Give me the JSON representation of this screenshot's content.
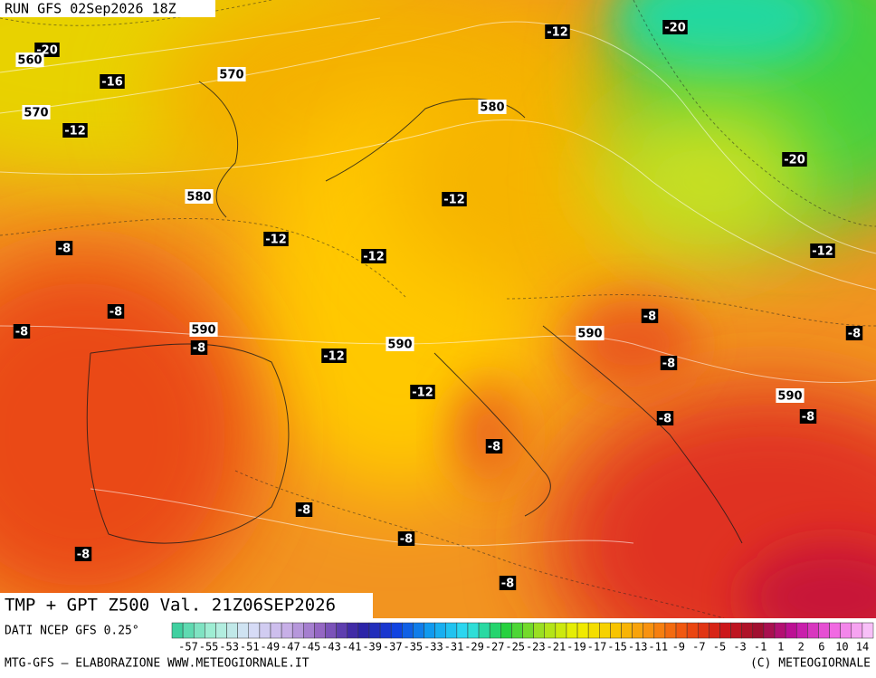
{
  "header": {
    "run": "RUN GFS 02Sep2026 18Z"
  },
  "map": {
    "isotherm_labels": [
      "-20",
      "-16",
      "-12",
      "-12",
      "-20",
      "-20",
      "-12",
      "-12",
      "-12",
      "-12",
      "-8",
      "-8",
      "-8",
      "-8",
      "-12",
      "-8",
      "-8",
      "-8",
      "-12",
      "-8",
      "-8",
      "-8",
      "-8",
      "-8",
      "-8",
      "-8"
    ],
    "height_labels": [
      "560",
      "570",
      "570",
      "580",
      "580",
      "590",
      "590",
      "590",
      "590"
    ]
  },
  "footer": {
    "title": "TMP + GPT Z500 Val. 21Z06SEP2026",
    "source": "DATI NCEP GFS 0.25°",
    "scale_ticks": [
      -57,
      -55,
      -53,
      -51,
      -49,
      -47,
      -45,
      -43,
      -41,
      -39,
      -37,
      -35,
      -33,
      -31,
      -29,
      -27,
      -25,
      -23,
      -21,
      -19,
      -17,
      -15,
      -13,
      -11,
      -9,
      -7,
      -5,
      -3,
      -1,
      1,
      2,
      6,
      10,
      14
    ],
    "credit": "MTG-GFS — ELABORAZIONE WWW.METEOGIORNALE.IT",
    "copyright": "(C) METEOGIORNALE"
  }
}
